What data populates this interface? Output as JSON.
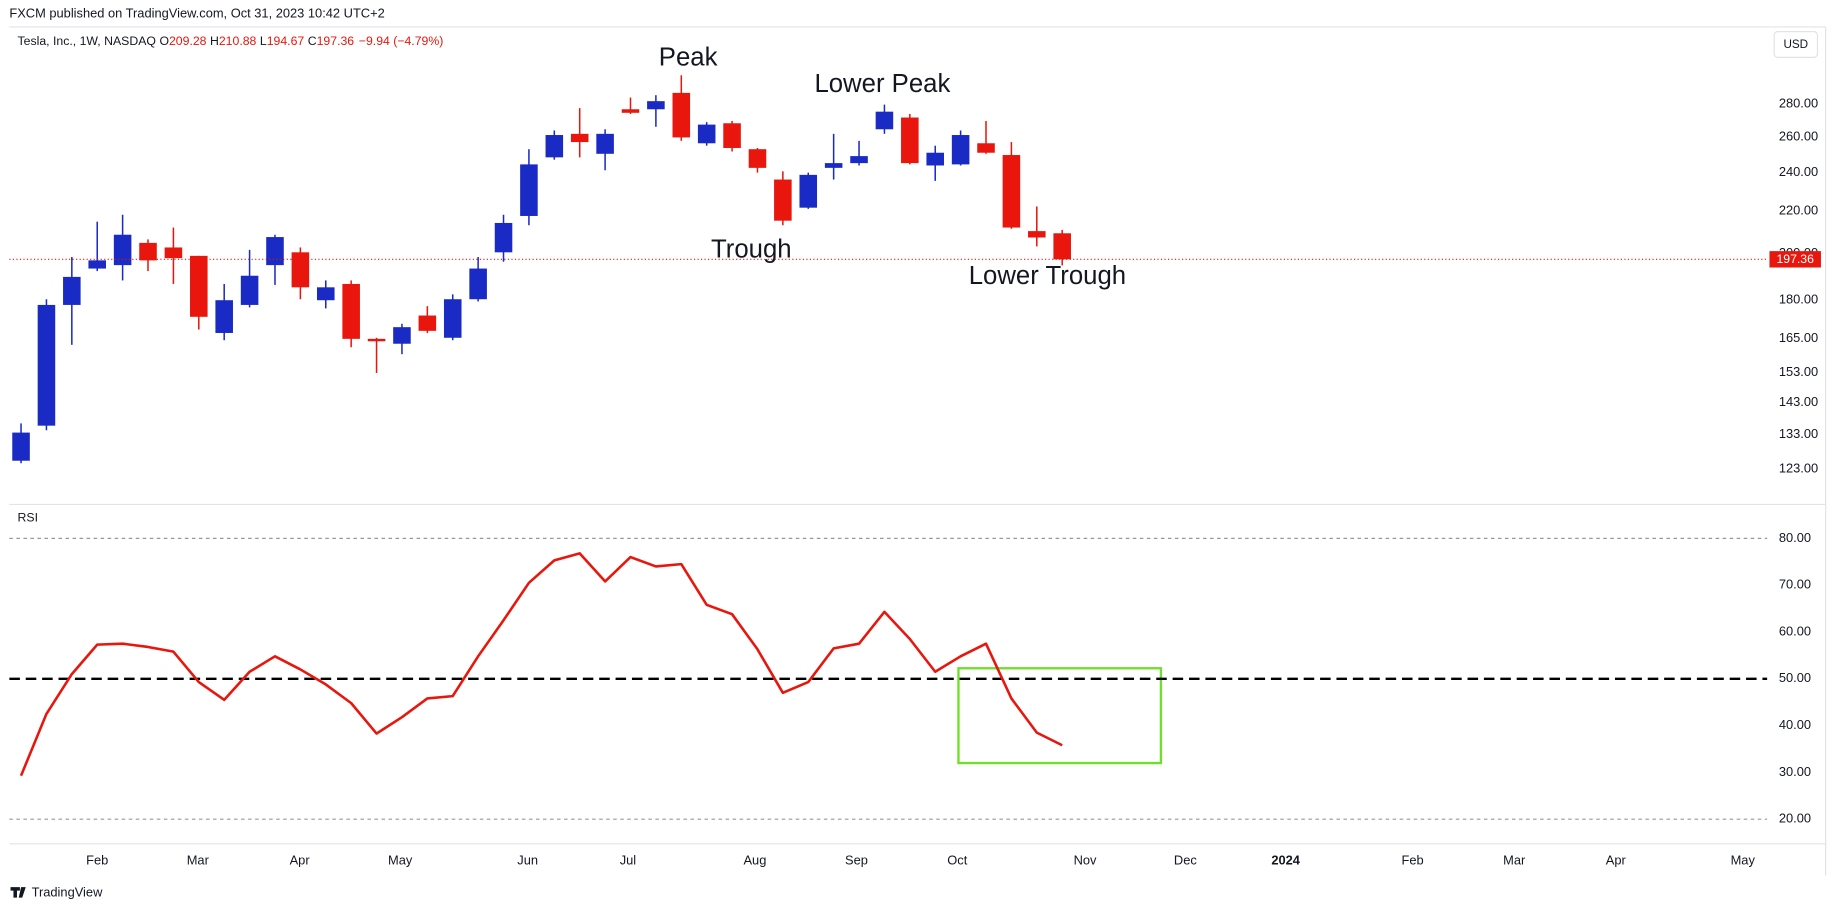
{
  "header": {
    "source": "FXCM published on TradingView.com, Oct 31, 2023 10:42 UTC+2"
  },
  "footer": {
    "brand": "TradingView"
  },
  "chart_data": [
    {
      "type": "candlestick",
      "title": "Tesla, Inc., 1W, NASDAQ",
      "ohlc_legend": [
        {
          "label": "O",
          "value": 209.28
        },
        {
          "label": "H",
          "value": 210.88
        },
        {
          "label": "L",
          "value": 194.67
        },
        {
          "label": "C",
          "value": 197.36
        }
      ],
      "change": "−9.94 (−4.79%)",
      "currency": "USD",
      "annotations": [
        "Peak",
        "Lower Peak",
        "Trough",
        "Lower Trough"
      ],
      "up_color": "#1a2ac4",
      "down_color": "#e8160c",
      "open": [
        125.4,
        135.7,
        178.1,
        193.3,
        194.8,
        204.8,
        202.7,
        198.9,
        167.2,
        178.1,
        194.8,
        200.5,
        180.0,
        186.7,
        165.0,
        163.2,
        173.9,
        165.4,
        180.4,
        200.5,
        217.6,
        248.3,
        261.8,
        250.3,
        276.7,
        276.7,
        287.1,
        256.3,
        268.1,
        252.9,
        236.2,
        221.7,
        242.5,
        245.1,
        264.5,
        271.6,
        243.8,
        244.4,
        256.3,
        249.6,
        210.3,
        209.28
      ],
      "high": [
        136.4,
        180.4,
        198.4,
        214.8,
        218.2,
        206.4,
        212.0,
        198.9,
        186.7,
        201.6,
        208.6,
        202.7,
        188.2,
        188.2,
        165.4,
        170.7,
        177.6,
        182.4,
        198.4,
        218.2,
        252.9,
        263.8,
        277.4,
        264.5,
        284.1,
        285.6,
        298.7,
        268.8,
        269.5,
        253.6,
        240.6,
        239.9,
        261.8,
        257.7,
        279.6,
        273.8,
        254.9,
        263.8,
        269.5,
        257.0,
        222.3,
        210.88
      ],
      "low": [
        124.7,
        134.3,
        162.8,
        192.2,
        188.2,
        192.2,
        186.7,
        168.5,
        164.5,
        177.1,
        186.3,
        180.4,
        176.7,
        161.9,
        152.8,
        159.4,
        167.2,
        164.5,
        179.5,
        196.3,
        213.1,
        247.0,
        248.3,
        241.2,
        273.8,
        266.0,
        257.7,
        254.9,
        251.6,
        239.9,
        213.1,
        221.1,
        236.2,
        243.8,
        261.8,
        244.4,
        235.5,
        243.8,
        250.3,
        211.4,
        203.2,
        194.67
      ],
      "close": [
        133.6,
        178.1,
        189.7,
        196.9,
        208.6,
        196.9,
        197.9,
        173.4,
        180.0,
        190.2,
        207.5,
        185.3,
        185.3,
        165.0,
        164.1,
        169.4,
        168.0,
        180.4,
        193.3,
        214.2,
        244.4,
        261.1,
        257.0,
        261.8,
        274.5,
        281.8,
        259.7,
        267.3,
        253.6,
        242.5,
        215.3,
        238.7,
        245.1,
        249.0,
        275.2,
        245.1,
        250.9,
        261.1,
        250.9,
        212.0,
        207.3,
        197.36
      ],
      "last_price": 197.36,
      "last_price_color": "#e8160c",
      "log_scale": true,
      "xlim": [
        -0.46,
        68.76
      ],
      "ylim": [
        113.95,
        331.3
      ],
      "yticks": [
        {
          "value": 123,
          "label": "123.00"
        },
        {
          "value": 133,
          "label": "133.00"
        },
        {
          "value": 143,
          "label": "143.00"
        },
        {
          "value": 153,
          "label": "153.00"
        },
        {
          "value": 165,
          "label": "165.00"
        },
        {
          "value": 180,
          "label": "180.00"
        },
        {
          "value": 200,
          "label": "200.00"
        },
        {
          "value": 220,
          "label": "220.00"
        },
        {
          "value": 240,
          "label": "240.00"
        },
        {
          "value": 260,
          "label": "260.00"
        },
        {
          "value": 280,
          "label": "280.00"
        }
      ],
      "grid": false
    },
    {
      "type": "line",
      "title": "RSI",
      "color": "#e8160c",
      "values": [
        29.3,
        42.5,
        51,
        57.3,
        57.5,
        56.8,
        55.8,
        49.3,
        45.5,
        51.5,
        54.8,
        52,
        48.8,
        44.8,
        38.3,
        41.8,
        45.8,
        46.3,
        54.8,
        62.5,
        70.5,
        75.3,
        76.8,
        70.8,
        76,
        74,
        74.5,
        65.8,
        63.8,
        56.3,
        47,
        49.3,
        56.5,
        57.5,
        64.3,
        58.5,
        51.5,
        54.8,
        57.5,
        45.8,
        38.5,
        35.8
      ],
      "upper_band": 80,
      "midline": 50,
      "lower_band": 20,
      "xlim": [
        -0.46,
        68.76
      ],
      "ylim": [
        15,
        87
      ],
      "yticks": [
        {
          "value": 20,
          "label": "20.00"
        },
        {
          "value": 30,
          "label": "30.00"
        },
        {
          "value": 40,
          "label": "40.00"
        },
        {
          "value": 50,
          "label": "50.00"
        },
        {
          "value": 60,
          "label": "60.00"
        },
        {
          "value": 70,
          "label": "70.00"
        },
        {
          "value": 80,
          "label": "80.00"
        }
      ],
      "xticks": [
        {
          "value": 3.0,
          "label": "Feb"
        },
        {
          "value": 6.96,
          "label": "Mar"
        },
        {
          "value": 10.97,
          "label": "Apr"
        },
        {
          "value": 14.93,
          "label": "May"
        },
        {
          "value": 19.95,
          "label": "Jun"
        },
        {
          "value": 23.9,
          "label": "Jul"
        },
        {
          "value": 28.9,
          "label": "Aug"
        },
        {
          "value": 32.9,
          "label": "Sep"
        },
        {
          "value": 36.87,
          "label": "Oct"
        },
        {
          "value": 41.9,
          "label": "Nov"
        },
        {
          "value": 45.85,
          "label": "Dec"
        },
        {
          "value": 49.8,
          "label": "2024"
        },
        {
          "value": 54.8,
          "label": "Feb"
        },
        {
          "value": 58.8,
          "label": "Mar"
        },
        {
          "value": 62.8,
          "label": "Apr"
        },
        {
          "value": 67.8,
          "label": "May"
        }
      ],
      "grid": false
    }
  ]
}
